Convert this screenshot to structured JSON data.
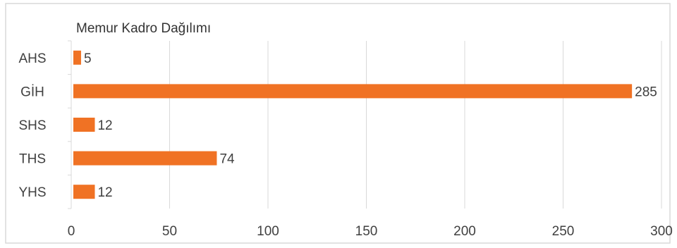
{
  "chart_data": {
    "type": "bar",
    "orientation": "horizontal",
    "title": "Memur Kadro Dağılımı",
    "xlabel": "",
    "ylabel": "",
    "categories": [
      "AHS",
      "GİH",
      "SHS",
      "THS",
      "YHS"
    ],
    "values": [
      5,
      285,
      12,
      74,
      12
    ],
    "xlim": [
      0,
      300
    ],
    "xticks": [
      "0",
      "50",
      "100",
      "150",
      "200",
      "250",
      "300"
    ],
    "grid": true,
    "legend": "none",
    "bar_color": "#f07224",
    "gridline_color": "#d9d9d9",
    "border_color": "#d9d9d9"
  }
}
